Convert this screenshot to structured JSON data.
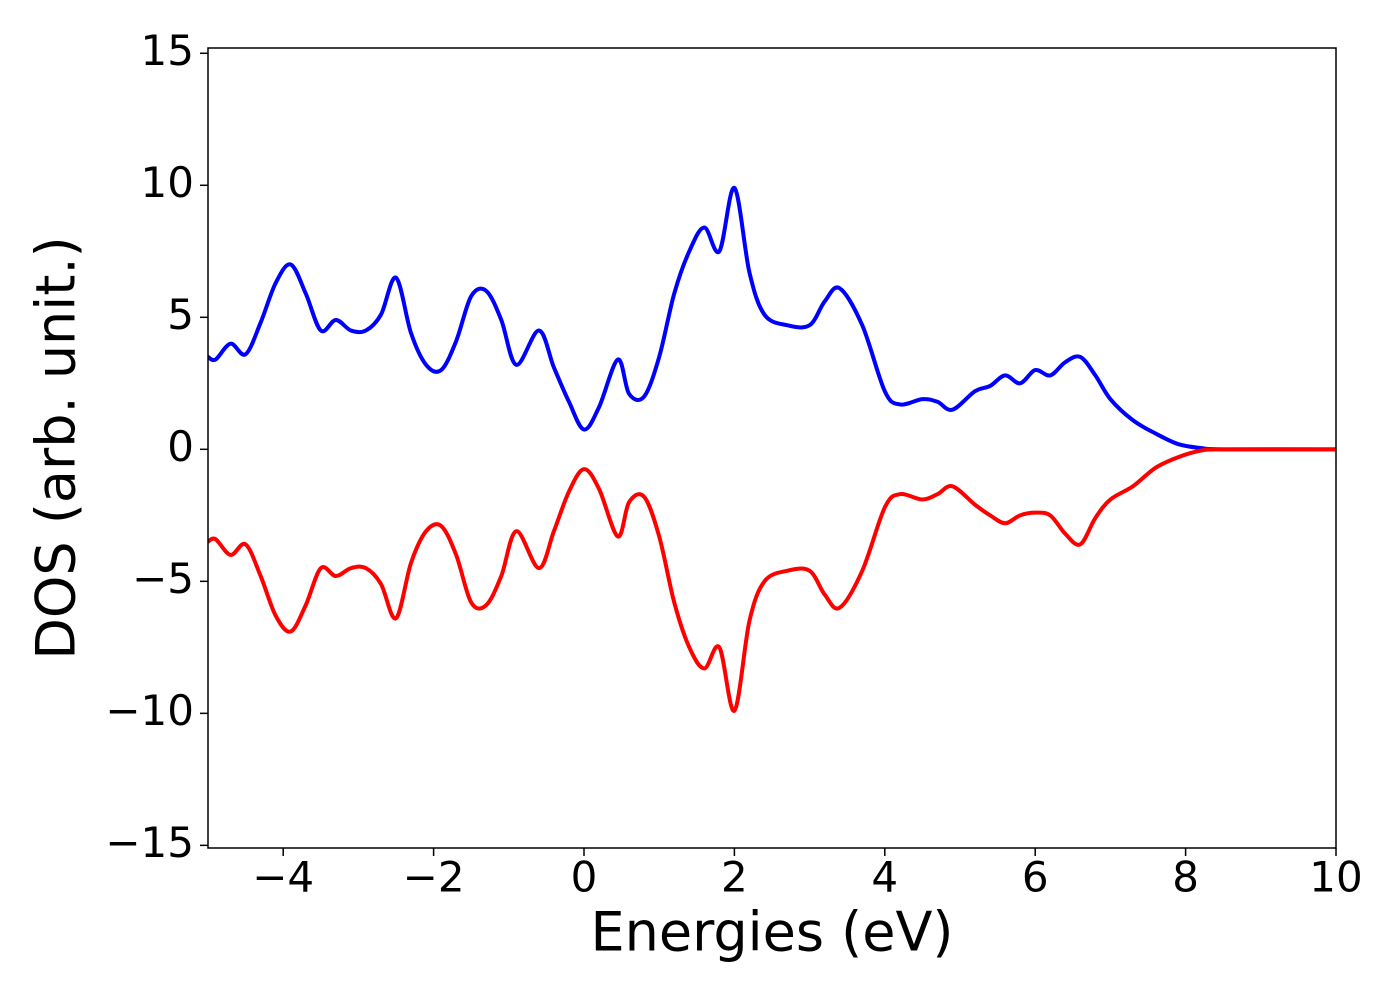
{
  "chart_data": {
    "type": "line",
    "x_label": "Energies (eV)",
    "y_label": "DOS (arb. unit.)",
    "x": [
      -5,
      -4.9,
      -4.7,
      -4.5,
      -4.3,
      -4.1,
      -3.9,
      -3.7,
      -3.5,
      -3.3,
      -3.1,
      -2.9,
      -2.7,
      -2.5,
      -2.3,
      -2.1,
      -1.9,
      -1.7,
      -1.5,
      -1.3,
      -1.1,
      -0.9,
      -0.6,
      -0.4,
      -0.2,
      0,
      0.2,
      0.45,
      0.6,
      0.8,
      1.0,
      1.2,
      1.4,
      1.6,
      1.8,
      2.0,
      2.2,
      2.4,
      2.7,
      3.0,
      3.2,
      3.4,
      3.7,
      4.0,
      4.2,
      4.5,
      4.7,
      4.9,
      5.2,
      5.4,
      5.6,
      5.8,
      6.0,
      6.2,
      6.4,
      6.6,
      6.8,
      7.0,
      7.3,
      7.6,
      7.9,
      8.2,
      8.5,
      10
    ],
    "series": [
      {
        "color": "#0000ff",
        "values": [
          3.5,
          3.4,
          4.0,
          3.6,
          4.8,
          6.3,
          7.0,
          5.9,
          4.5,
          4.9,
          4.5,
          4.5,
          5.1,
          6.5,
          4.4,
          3.2,
          3.0,
          4.1,
          5.8,
          6.0,
          4.9,
          3.2,
          4.5,
          3.1,
          1.8,
          0.75,
          1.6,
          3.4,
          2.1,
          2.0,
          3.5,
          5.9,
          7.5,
          8.4,
          7.5,
          9.9,
          6.7,
          5.1,
          4.7,
          4.7,
          5.6,
          6.1,
          4.7,
          2.2,
          1.7,
          1.9,
          1.8,
          1.5,
          2.2,
          2.4,
          2.8,
          2.5,
          3.0,
          2.8,
          3.3,
          3.5,
          2.8,
          1.9,
          1.1,
          0.6,
          0.2,
          0.05,
          0,
          0
        ]
      },
      {
        "color": "#ff0000",
        "values": [
          -3.5,
          -3.4,
          -4.0,
          -3.6,
          -4.8,
          -6.3,
          -6.9,
          -5.9,
          -4.5,
          -4.8,
          -4.5,
          -4.5,
          -5.1,
          -6.4,
          -4.3,
          -3.1,
          -2.9,
          -4.0,
          -5.8,
          -5.9,
          -4.8,
          -3.1,
          -4.5,
          -3.1,
          -1.6,
          -0.75,
          -1.5,
          -3.3,
          -2.0,
          -1.8,
          -3.3,
          -5.8,
          -7.5,
          -8.3,
          -7.5,
          -9.9,
          -6.5,
          -5.0,
          -4.6,
          -4.6,
          -5.5,
          -6.0,
          -4.6,
          -2.2,
          -1.7,
          -1.9,
          -1.7,
          -1.4,
          -2.1,
          -2.5,
          -2.8,
          -2.5,
          -2.4,
          -2.5,
          -3.2,
          -3.6,
          -2.6,
          -1.9,
          -1.4,
          -0.7,
          -0.3,
          -0.05,
          0,
          0
        ]
      }
    ],
    "xlim": [
      -5,
      10
    ],
    "ylim": [
      -15.1,
      15.2
    ],
    "xticks": [
      {
        "value": -4,
        "label": "−4"
      },
      {
        "value": -2,
        "label": "−2"
      },
      0,
      2,
      4,
      6,
      8,
      10
    ],
    "yticks": [
      {
        "value": -15,
        "label": "−15"
      },
      {
        "value": -10,
        "label": "−10"
      },
      {
        "value": -5,
        "label": "−5"
      },
      0,
      5,
      10,
      15
    ],
    "grid": false
  }
}
